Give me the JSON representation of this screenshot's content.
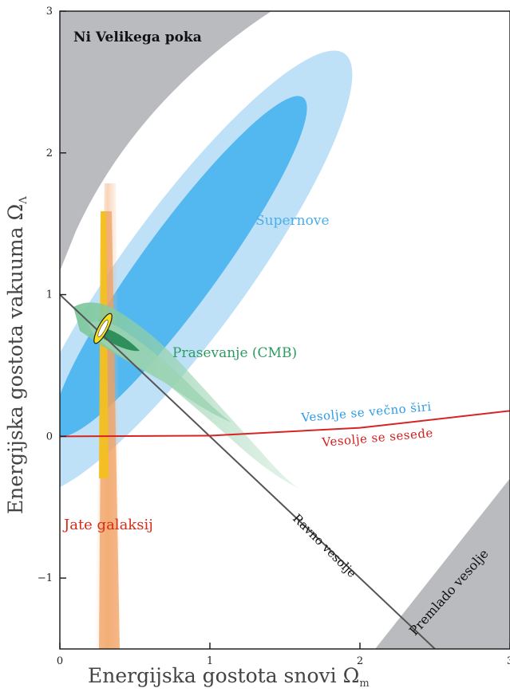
{
  "chart_data": {
    "type": "scatter",
    "title": "",
    "xlabel": "Energijska gostota snovi Ω",
    "xlabel_subscript": "m",
    "ylabel": "Energijska gostota vakuuma Ω",
    "ylabel_subscript": "Λ",
    "xlim": [
      0,
      3
    ],
    "ylim": [
      -1.5,
      3
    ],
    "x_ticks": [
      {
        "value": 0,
        "label": "0"
      },
      {
        "value": 1,
        "label": "1"
      },
      {
        "value": 2,
        "label": "2"
      },
      {
        "value": 3,
        "label": "3"
      }
    ],
    "y_ticks": [
      {
        "value": -1,
        "label": "−1"
      },
      {
        "value": 0,
        "label": "0"
      },
      {
        "value": 1,
        "label": "1"
      },
      {
        "value": 2,
        "label": "2"
      },
      {
        "value": 3,
        "label": "3"
      }
    ],
    "grid": false,
    "regions": [
      {
        "name": "Supernove",
        "color": "#53b8ef",
        "center": [
          0.8,
          1.2
        ],
        "slope": 1.45
      },
      {
        "name": "Prasevanje (CMB)",
        "color": "#48b07a",
        "center": [
          0.35,
          0.75
        ],
        "slope": -1
      },
      {
        "name": "Jate galaksij",
        "color": "#e88a2e",
        "center": [
          0.3,
          0.6
        ]
      },
      {
        "name": "Ni Velikega poka",
        "color": "#b9bbbe"
      },
      {
        "name": "Premlado vesolje",
        "color": "#b9bbbe"
      }
    ],
    "lines": [
      {
        "name": "Ravno vesolje",
        "color": "#555555",
        "points": [
          [
            0,
            1
          ],
          [
            2.5,
            -1.5
          ]
        ]
      },
      {
        "name": "Vesolje se sesede",
        "color": "#d62424",
        "points": [
          [
            0,
            0
          ],
          [
            1,
            0.005
          ],
          [
            2,
            0.06
          ],
          [
            3,
            0.18
          ]
        ]
      }
    ],
    "annotations": [
      {
        "text": "Ni Velikega poka",
        "color": "#111111"
      },
      {
        "text": "Supernove",
        "color": "#4aaee8"
      },
      {
        "text": "Prasevanje (CMB)",
        "color": "#2e9a62"
      },
      {
        "text": "Vesolje se večno širi",
        "color": "#2f9ce6"
      },
      {
        "text": "Vesolje se sesede",
        "color": "#d12020"
      },
      {
        "text": "Jate galaksij",
        "color": "#d62a1a"
      },
      {
        "text": "Ravno vesolje",
        "color": "#111111"
      },
      {
        "text": "Premlado vesolje",
        "color": "#111111"
      }
    ]
  }
}
